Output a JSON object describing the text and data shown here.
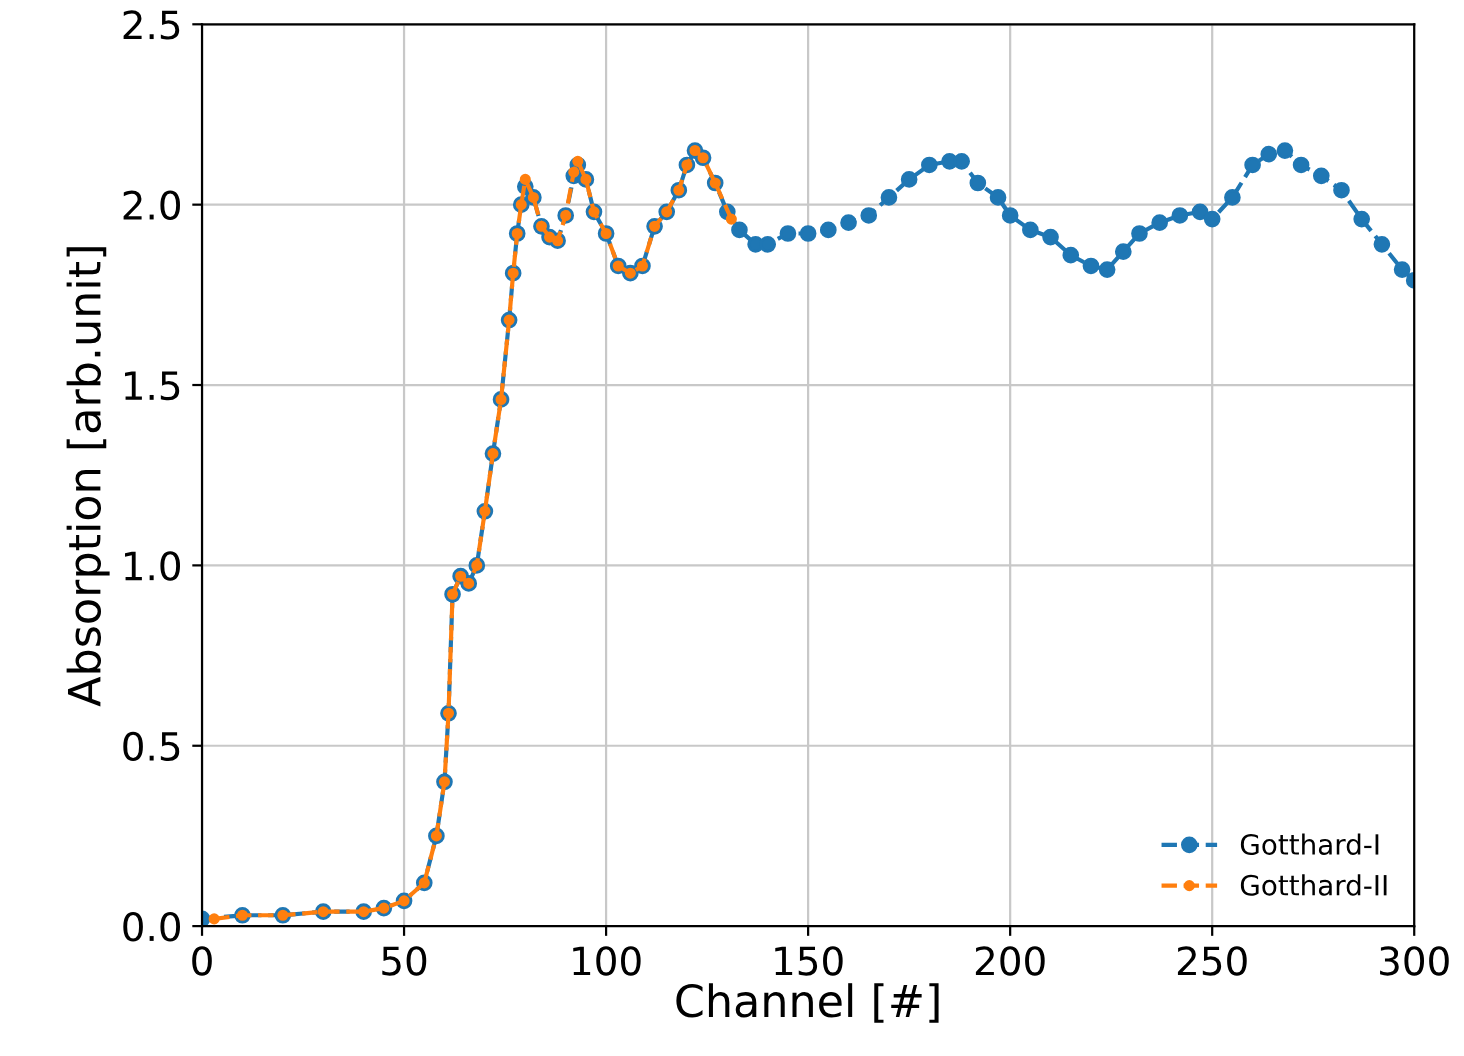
{
  "chart_data": {
    "type": "line",
    "xlabel": "Channel [#]",
    "ylabel": "Absorption [arb.unit]",
    "xlim": [
      0,
      300
    ],
    "xticks": [
      0,
      50,
      100,
      150,
      200,
      250,
      300
    ],
    "ylim": [
      0.0,
      2.5
    ],
    "yticks": [
      {
        "value": 0,
        "label": "0.0"
      },
      0.5,
      {
        "value": 1,
        "label": "1.0"
      },
      1.5,
      {
        "value": 2,
        "label": "2.0"
      },
      2.5
    ],
    "grid": true,
    "legend": "bottom right",
    "marker": "circle",
    "line_style": "dashed",
    "series": [
      {
        "name": "Gotthard-I",
        "color": "#1f77b4",
        "x": [
          0,
          10,
          20,
          30,
          40,
          45,
          50,
          55,
          58,
          60,
          61,
          62,
          64,
          66,
          68,
          70,
          72,
          74,
          76,
          77,
          78,
          79,
          80,
          82,
          84,
          86,
          88,
          90,
          92,
          93,
          95,
          97,
          100,
          103,
          106,
          109,
          112,
          115,
          118,
          120,
          122,
          124,
          127,
          130,
          133,
          137,
          140,
          145,
          150,
          155,
          160,
          165,
          170,
          175,
          180,
          185,
          188,
          192,
          197,
          200,
          205,
          210,
          215,
          220,
          224,
          228,
          232,
          237,
          242,
          247,
          250,
          255,
          260,
          264,
          268,
          272,
          277,
          282,
          287,
          292,
          297,
          300
        ],
        "values": [
          0.02,
          0.03,
          0.03,
          0.04,
          0.04,
          0.05,
          0.07,
          0.12,
          0.25,
          0.4,
          0.59,
          0.92,
          0.97,
          0.95,
          1.0,
          1.15,
          1.31,
          1.46,
          1.68,
          1.81,
          1.92,
          2.0,
          2.05,
          2.02,
          1.94,
          1.91,
          1.9,
          1.97,
          2.08,
          2.11,
          2.07,
          1.98,
          1.92,
          1.83,
          1.81,
          1.83,
          1.94,
          1.98,
          2.04,
          2.11,
          2.15,
          2.13,
          2.06,
          1.98,
          1.93,
          1.89,
          1.89,
          1.92,
          1.92,
          1.93,
          1.95,
          1.97,
          2.02,
          2.07,
          2.11,
          2.12,
          2.12,
          2.06,
          2.02,
          1.97,
          1.93,
          1.91,
          1.86,
          1.83,
          1.82,
          1.87,
          1.92,
          1.95,
          1.97,
          1.98,
          1.96,
          2.02,
          2.11,
          2.14,
          2.15,
          2.11,
          2.08,
          2.04,
          1.96,
          1.89,
          1.82,
          1.79
        ]
      },
      {
        "name": "Gotthard-II",
        "color": "#ff7f0e",
        "x": [
          3,
          10,
          20,
          30,
          40,
          45,
          50,
          55,
          58,
          60,
          61,
          62,
          64,
          66,
          68,
          70,
          72,
          74,
          76,
          77,
          78,
          79,
          80,
          82,
          84,
          86,
          88,
          90,
          92,
          93,
          95,
          97,
          100,
          103,
          106,
          109,
          112,
          115,
          118,
          120,
          122,
          124,
          127,
          131
        ],
        "values": [
          0.02,
          0.03,
          0.03,
          0.04,
          0.04,
          0.05,
          0.07,
          0.12,
          0.25,
          0.4,
          0.59,
          0.92,
          0.97,
          0.95,
          1.0,
          1.15,
          1.31,
          1.46,
          1.68,
          1.81,
          1.92,
          2.0,
          2.07,
          2.02,
          1.94,
          1.91,
          1.9,
          1.97,
          2.09,
          2.12,
          2.07,
          1.98,
          1.92,
          1.83,
          1.81,
          1.83,
          1.94,
          1.98,
          2.04,
          2.11,
          2.15,
          2.13,
          2.06,
          1.96
        ]
      }
    ]
  }
}
